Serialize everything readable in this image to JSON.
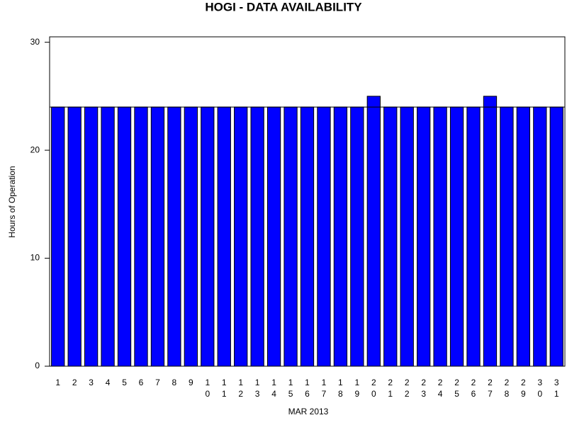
{
  "chart_data": {
    "type": "bar",
    "title": "HOGI - DATA AVAILABILITY",
    "x_label": "MAR 2013",
    "y_label": "Hours of Operation",
    "categories": [
      "1",
      "2",
      "3",
      "4",
      "5",
      "6",
      "7",
      "8",
      "9",
      "10",
      "11",
      "12",
      "13",
      "14",
      "15",
      "16",
      "17",
      "18",
      "19",
      "20",
      "21",
      "22",
      "23",
      "24",
      "25",
      "26",
      "27",
      "28",
      "29",
      "30",
      "31"
    ],
    "values": [
      24,
      24,
      24,
      24,
      24,
      24,
      24,
      24,
      24,
      24,
      24,
      24,
      24,
      24,
      24,
      24,
      24,
      24,
      24,
      25,
      24,
      24,
      24,
      24,
      24,
      24,
      25,
      24,
      24,
      24,
      24
    ],
    "color": "#0000ff",
    "reference_line": 24,
    "ylim": [
      0,
      30.5
    ],
    "yticks": [
      0,
      10,
      20,
      30
    ]
  }
}
